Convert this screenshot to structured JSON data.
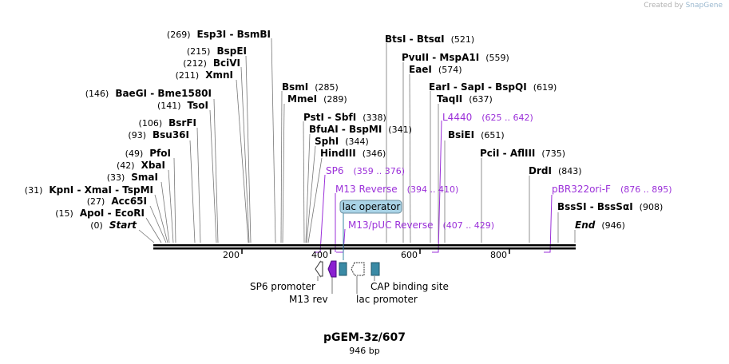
{
  "credit": {
    "prefix": "Created by",
    "brand": "SnapGene"
  },
  "plasmid": {
    "name": "pGEM-3z/607",
    "size": "946 bp"
  },
  "ruler": {
    "ticks": [
      "200",
      "400",
      "600",
      "800"
    ]
  },
  "enzymes": [
    {
      "pos": "(269)",
      "name": "Esp3I  -  BsmBI"
    },
    {
      "pos": "(215)",
      "name": "BspEI"
    },
    {
      "pos": "(212)",
      "name": "BciVI"
    },
    {
      "pos": "(211)",
      "name": "XmnI"
    },
    {
      "pos": "(146)",
      "name": "BaeGI  -  Bme1580I"
    },
    {
      "pos": "(141)",
      "name": "TsoI"
    },
    {
      "pos": "(106)",
      "name": "BsrFI"
    },
    {
      "pos": "(93)",
      "name": "Bsu36I"
    },
    {
      "pos": "(49)",
      "name": "PfoI"
    },
    {
      "pos": "(42)",
      "name": "XbaI"
    },
    {
      "pos": "(33)",
      "name": "SmaI"
    },
    {
      "pos": "(31)",
      "name": "KpnI  -  XmaI  -  TspMI"
    },
    {
      "pos": "(27)",
      "name": "Acc65I"
    },
    {
      "pos": "(15)",
      "name": "ApoI  -  EcoRI"
    },
    {
      "pos": "(0)",
      "name": "Start"
    },
    {
      "pos": "(285)",
      "name": "BsmI"
    },
    {
      "pos": "(289)",
      "name": "MmeI"
    },
    {
      "pos": "(338)",
      "name": "PstI  -  SbfI"
    },
    {
      "pos": "(341)",
      "name": "BfuAI  -  BspMI"
    },
    {
      "pos": "(344)",
      "name": "SphI"
    },
    {
      "pos": "(346)",
      "name": "HindIII"
    },
    {
      "pos": "(521)",
      "name": "BtsI  -  BtsαI"
    },
    {
      "pos": "(559)",
      "name": "PvuII  -  MspA1I"
    },
    {
      "pos": "(574)",
      "name": "EaeI"
    },
    {
      "pos": "(619)",
      "name": "EarI  -  SapI  -  BspQI"
    },
    {
      "pos": "(637)",
      "name": "TaqII"
    },
    {
      "pos": "(651)",
      "name": "BsiEI"
    },
    {
      "pos": "(735)",
      "name": "PciI  -  AflIII"
    },
    {
      "pos": "(843)",
      "name": "DrdI"
    },
    {
      "pos": "(908)",
      "name": "BssSI  -  BssSαI"
    },
    {
      "pos": "(946)",
      "name": "End"
    }
  ],
  "primers": [
    {
      "name": "SP6",
      "range": "(359 .. 376)"
    },
    {
      "name": "M13 Reverse",
      "range": "(394 .. 410)"
    },
    {
      "name": "M13/pUC Reverse",
      "range": "(407 .. 429)"
    },
    {
      "name": "L4440",
      "range": "(625 .. 642)"
    },
    {
      "name": "pBR322ori-F",
      "range": "(876 .. 895)"
    }
  ],
  "features": {
    "lac_operator": "lac operator",
    "sp6_promoter": "SP6 promoter",
    "m13_rev": "M13 rev",
    "lac_promoter": "lac promoter",
    "cap_site": "CAP binding site"
  },
  "colors": {
    "primer": "#9b30d9",
    "feature_teal": "#3a8aa5",
    "m13_purple": "#8a1fd1",
    "operator_fill": "#a9d3e6"
  }
}
